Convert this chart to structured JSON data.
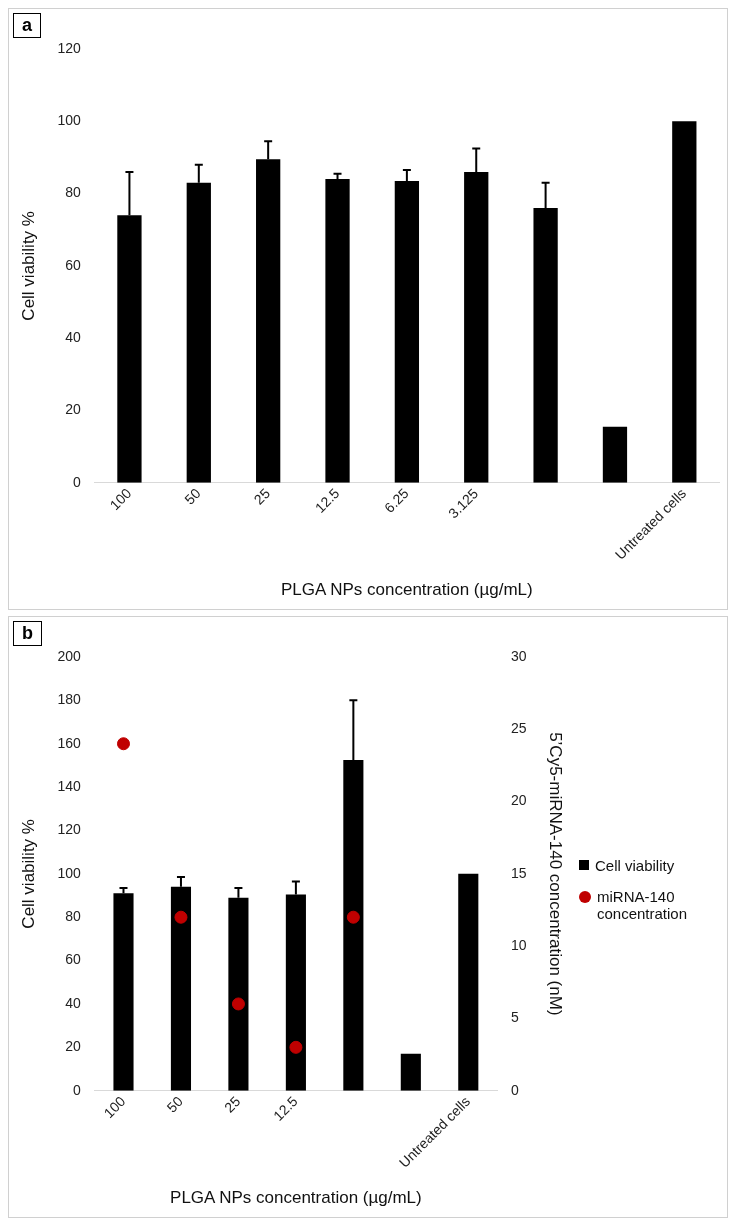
{
  "chart_data": [
    {
      "type": "bar",
      "title": "a",
      "xlabel": "PLGA NPs concentration (µg/mL)",
      "ylabel": "Cell viability %",
      "categories": [
        "100",
        "50",
        "25",
        "12.5",
        "6.25",
        "3.125",
        null,
        null,
        "Untreated cells"
      ],
      "series": [
        {
          "color": "#000000",
          "values": [
            74,
            83,
            89.5,
            84,
            83.5,
            86,
            76,
            15.5,
            100
          ],
          "errors": [
            [
              74,
              86
            ],
            [
              83,
              88
            ],
            [
              89.5,
              94.5
            ],
            [
              84,
              85.5
            ],
            [
              83.5,
              86.5
            ],
            [
              86,
              92.5
            ],
            [
              76,
              83
            ],
            null,
            null
          ]
        }
      ],
      "ylim": [
        0,
        120
      ],
      "yticks": [
        0,
        20,
        40,
        60,
        80,
        100,
        120
      ],
      "grid": false,
      "legend": false
    },
    {
      "type": "bar",
      "title": "b",
      "xlabel": "PLGA NPs concentration (µg/mL)",
      "ylabel": "Cell viability %",
      "y2label": "5’Cy5-miRNA-140 concentration (nM)",
      "categories": [
        "100",
        "50",
        "25",
        "12.5",
        null,
        null,
        "Untreated cells"
      ],
      "series": [
        {
          "name": "Cell viability",
          "color": "#000000",
          "values": [
            91,
            94,
            89,
            90.5,
            152.5,
            17,
            100
          ],
          "errors": [
            [
              91,
              93.5
            ],
            [
              94,
              98.5
            ],
            [
              89,
              93.5
            ],
            [
              90.5,
              96.5
            ],
            [
              152.5,
              180
            ],
            null,
            null
          ]
        },
        {
          "name": "miRNA-140 concentration",
          "type": "scatter",
          "axis": "y2",
          "marker": "circle",
          "color": "#c00000",
          "values": [
            24,
            12,
            6,
            3,
            12,
            null,
            null
          ]
        }
      ],
      "ylim": [
        0,
        200
      ],
      "yticks": [
        0,
        20,
        40,
        60,
        80,
        100,
        120,
        140,
        160,
        180,
        200
      ],
      "y2lim": [
        0,
        30
      ],
      "y2ticks": [
        0,
        5,
        10,
        15,
        20,
        25,
        30
      ],
      "grid": false,
      "legend": "right"
    }
  ]
}
